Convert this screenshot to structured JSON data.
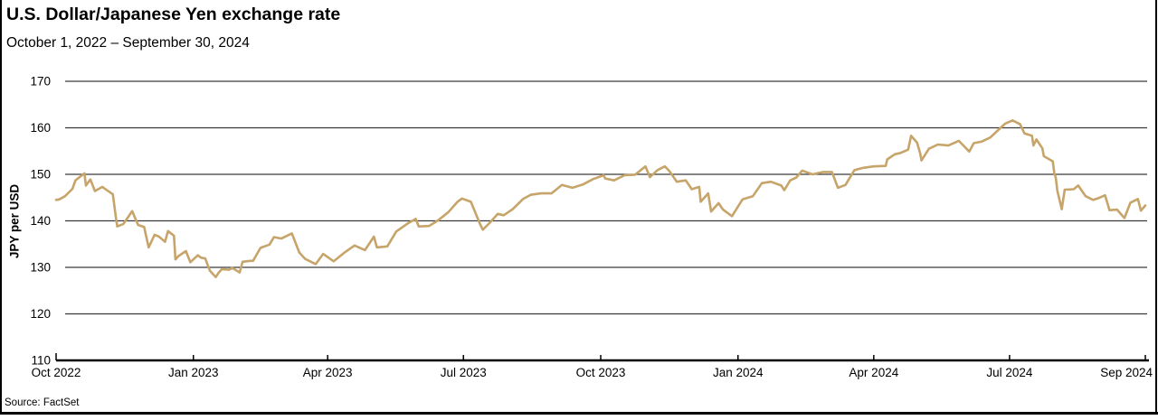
{
  "header": {
    "title": "U.S. Dollar/Japanese Yen exchange rate",
    "subtitle": "October 1, 2022 – September 30, 2024"
  },
  "footer": {
    "source": "Source: FactSet"
  },
  "chart_data": {
    "type": "line",
    "title": "U.S. Dollar/Japanese Yen exchange rate",
    "subtitle": "October 1, 2022 – September 30, 2024",
    "ylabel": "JPY per USD",
    "xlabel": "",
    "ylim": [
      110,
      170
    ],
    "yticks": [
      110,
      120,
      130,
      140,
      150,
      160,
      170
    ],
    "x_range": [
      "2022-10-01",
      "2024-09-30"
    ],
    "grid": "horizontal",
    "legend": "none",
    "line_color": "#c6a46a",
    "axis_color": "#000000",
    "xticks": [
      {
        "label": "Oct 2022",
        "date": "2022-10-01"
      },
      {
        "label": "Jan 2023",
        "date": "2023-01-01"
      },
      {
        "label": "Apr 2023",
        "date": "2023-04-01"
      },
      {
        "label": "Jul 2023",
        "date": "2023-07-01"
      },
      {
        "label": "Oct 2023",
        "date": "2023-10-01"
      },
      {
        "label": "Jan 2024",
        "date": "2024-01-01"
      },
      {
        "label": "Apr 2024",
        "date": "2024-04-01"
      },
      {
        "label": "Jul 2024",
        "date": "2024-07-01"
      },
      {
        "label": "Sep 2024",
        "date": "2024-09-30",
        "end": true
      }
    ],
    "series": [
      {
        "name": "USD/JPY exchange rate",
        "points": [
          [
            "2022-10-01",
            144.5
          ],
          [
            "2022-10-03",
            144.6
          ],
          [
            "2022-10-07",
            145.3
          ],
          [
            "2022-10-12",
            146.9
          ],
          [
            "2022-10-14",
            148.7
          ],
          [
            "2022-10-20",
            150.2
          ],
          [
            "2022-10-21",
            147.6
          ],
          [
            "2022-10-24",
            148.9
          ],
          [
            "2022-10-27",
            146.4
          ],
          [
            "2022-11-01",
            147.3
          ],
          [
            "2022-11-04",
            146.6
          ],
          [
            "2022-11-08",
            145.7
          ],
          [
            "2022-11-10",
            140.9
          ],
          [
            "2022-11-11",
            138.8
          ],
          [
            "2022-11-15",
            139.3
          ],
          [
            "2022-11-17",
            140.2
          ],
          [
            "2022-11-21",
            142.1
          ],
          [
            "2022-11-25",
            139.1
          ],
          [
            "2022-11-29",
            138.7
          ],
          [
            "2022-12-02",
            134.3
          ],
          [
            "2022-12-06",
            137.0
          ],
          [
            "2022-12-09",
            136.6
          ],
          [
            "2022-12-13",
            135.5
          ],
          [
            "2022-12-15",
            137.8
          ],
          [
            "2022-12-19",
            136.8
          ],
          [
            "2022-12-20",
            131.7
          ],
          [
            "2022-12-22",
            132.4
          ],
          [
            "2022-12-27",
            133.5
          ],
          [
            "2022-12-30",
            131.1
          ],
          [
            "2023-01-04",
            132.6
          ],
          [
            "2023-01-06",
            132.1
          ],
          [
            "2023-01-09",
            131.9
          ],
          [
            "2023-01-12",
            129.3
          ],
          [
            "2023-01-16",
            127.9
          ],
          [
            "2023-01-18",
            128.9
          ],
          [
            "2023-01-20",
            129.6
          ],
          [
            "2023-01-25",
            129.5
          ],
          [
            "2023-01-27",
            129.9
          ],
          [
            "2023-02-01",
            128.9
          ],
          [
            "2023-02-03",
            131.2
          ],
          [
            "2023-02-08",
            131.4
          ],
          [
            "2023-02-10",
            131.4
          ],
          [
            "2023-02-15",
            134.2
          ],
          [
            "2023-02-21",
            134.9
          ],
          [
            "2023-02-24",
            136.5
          ],
          [
            "2023-03-01",
            136.2
          ],
          [
            "2023-03-08",
            137.3
          ],
          [
            "2023-03-13",
            133.2
          ],
          [
            "2023-03-17",
            131.8
          ],
          [
            "2023-03-24",
            130.7
          ],
          [
            "2023-03-29",
            132.9
          ],
          [
            "2023-04-05",
            131.3
          ],
          [
            "2023-04-12",
            133.1
          ],
          [
            "2023-04-19",
            134.7
          ],
          [
            "2023-04-26",
            133.7
          ],
          [
            "2023-05-02",
            136.6
          ],
          [
            "2023-05-04",
            134.3
          ],
          [
            "2023-05-11",
            134.5
          ],
          [
            "2023-05-17",
            137.7
          ],
          [
            "2023-05-25",
            139.5
          ],
          [
            "2023-05-30",
            140.4
          ],
          [
            "2023-06-01",
            138.8
          ],
          [
            "2023-06-08",
            138.9
          ],
          [
            "2023-06-14",
            140.1
          ],
          [
            "2023-06-21",
            141.9
          ],
          [
            "2023-06-27",
            144.1
          ],
          [
            "2023-06-30",
            144.8
          ],
          [
            "2023-07-06",
            144.1
          ],
          [
            "2023-07-12",
            139.4
          ],
          [
            "2023-07-14",
            138.1
          ],
          [
            "2023-07-19",
            139.7
          ],
          [
            "2023-07-24",
            141.5
          ],
          [
            "2023-07-28",
            141.2
          ],
          [
            "2023-08-03",
            142.5
          ],
          [
            "2023-08-10",
            144.7
          ],
          [
            "2023-08-15",
            145.6
          ],
          [
            "2023-08-22",
            145.9
          ],
          [
            "2023-08-29",
            145.9
          ],
          [
            "2023-09-05",
            147.7
          ],
          [
            "2023-09-12",
            147.1
          ],
          [
            "2023-09-19",
            147.8
          ],
          [
            "2023-09-26",
            149.0
          ],
          [
            "2023-10-03",
            149.8
          ],
          [
            "2023-10-04",
            149.1
          ],
          [
            "2023-10-10",
            148.7
          ],
          [
            "2023-10-17",
            149.8
          ],
          [
            "2023-10-24",
            149.9
          ],
          [
            "2023-10-31",
            151.7
          ],
          [
            "2023-11-03",
            149.4
          ],
          [
            "2023-11-08",
            150.9
          ],
          [
            "2023-11-13",
            151.7
          ],
          [
            "2023-11-16",
            150.7
          ],
          [
            "2023-11-21",
            148.4
          ],
          [
            "2023-11-27",
            148.7
          ],
          [
            "2023-12-01",
            146.8
          ],
          [
            "2023-12-06",
            147.3
          ],
          [
            "2023-12-07",
            144.1
          ],
          [
            "2023-12-12",
            145.9
          ],
          [
            "2023-12-14",
            142.0
          ],
          [
            "2023-12-19",
            143.8
          ],
          [
            "2023-12-22",
            142.4
          ],
          [
            "2023-12-28",
            141.0
          ],
          [
            "2024-01-04",
            144.6
          ],
          [
            "2024-01-11",
            145.3
          ],
          [
            "2024-01-17",
            148.1
          ],
          [
            "2024-01-23",
            148.4
          ],
          [
            "2024-01-30",
            147.6
          ],
          [
            "2024-02-01",
            146.6
          ],
          [
            "2024-02-05",
            148.7
          ],
          [
            "2024-02-09",
            149.3
          ],
          [
            "2024-02-13",
            150.8
          ],
          [
            "2024-02-20",
            150.0
          ],
          [
            "2024-02-27",
            150.5
          ],
          [
            "2024-03-04",
            150.5
          ],
          [
            "2024-03-08",
            147.1
          ],
          [
            "2024-03-13",
            147.7
          ],
          [
            "2024-03-19",
            150.9
          ],
          [
            "2024-03-25",
            151.4
          ],
          [
            "2024-04-01",
            151.7
          ],
          [
            "2024-04-09",
            151.8
          ],
          [
            "2024-04-10",
            153.2
          ],
          [
            "2024-04-15",
            154.3
          ],
          [
            "2024-04-19",
            154.6
          ],
          [
            "2024-04-24",
            155.3
          ],
          [
            "2024-04-26",
            158.3
          ],
          [
            "2024-04-30",
            156.8
          ],
          [
            "2024-05-02",
            154.6
          ],
          [
            "2024-05-03",
            153.0
          ],
          [
            "2024-05-08",
            155.5
          ],
          [
            "2024-05-14",
            156.4
          ],
          [
            "2024-05-21",
            156.2
          ],
          [
            "2024-05-28",
            157.2
          ],
          [
            "2024-06-04",
            154.9
          ],
          [
            "2024-06-07",
            156.7
          ],
          [
            "2024-06-12",
            157.0
          ],
          [
            "2024-06-18",
            157.9
          ],
          [
            "2024-06-24",
            159.7
          ],
          [
            "2024-06-28",
            160.9
          ],
          [
            "2024-07-03",
            161.6
          ],
          [
            "2024-07-08",
            160.8
          ],
          [
            "2024-07-11",
            158.8
          ],
          [
            "2024-07-16",
            158.3
          ],
          [
            "2024-07-17",
            156.2
          ],
          [
            "2024-07-19",
            157.5
          ],
          [
            "2024-07-23",
            155.6
          ],
          [
            "2024-07-24",
            153.9
          ],
          [
            "2024-07-30",
            152.8
          ],
          [
            "2024-07-31",
            150.2
          ],
          [
            "2024-08-01",
            149.3
          ],
          [
            "2024-08-02",
            146.5
          ],
          [
            "2024-08-05",
            142.5
          ],
          [
            "2024-08-07",
            146.7
          ],
          [
            "2024-08-13",
            146.8
          ],
          [
            "2024-08-16",
            147.6
          ],
          [
            "2024-08-21",
            145.3
          ],
          [
            "2024-08-26",
            144.5
          ],
          [
            "2024-08-29",
            144.8
          ],
          [
            "2024-09-03",
            145.5
          ],
          [
            "2024-09-06",
            142.3
          ],
          [
            "2024-09-11",
            142.4
          ],
          [
            "2024-09-16",
            140.6
          ],
          [
            "2024-09-20",
            143.9
          ],
          [
            "2024-09-25",
            144.7
          ],
          [
            "2024-09-27",
            142.2
          ],
          [
            "2024-09-30",
            143.3
          ]
        ]
      }
    ]
  }
}
